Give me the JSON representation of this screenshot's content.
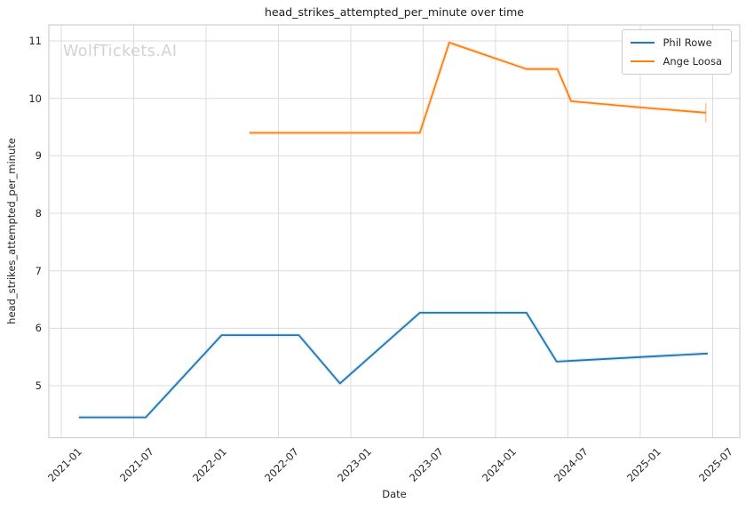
{
  "page": {
    "watermark": "WolfTickets.AI"
  },
  "colors": {
    "background": "#ffffff",
    "grid": "#dcdcdc",
    "spine": "#cfcfcf",
    "text": "#262626",
    "title_text": "#1a1a1a",
    "watermark": "#d2d2d2",
    "legend_border": "#cccccc",
    "series_blue": "#1f77b4",
    "series_orange": "#ff7f0e"
  },
  "chart_data": {
    "type": "line",
    "title": "head_strikes_attempted_per_minute over time",
    "xlabel": "Date",
    "ylabel": "head_strikes_attempted_per_minute",
    "x_tick_labels": [
      "2021-01",
      "2021-07",
      "2022-01",
      "2022-07",
      "2023-01",
      "2023-07",
      "2024-01",
      "2024-07",
      "2025-01",
      "2025-07"
    ],
    "y_ticks": [
      5,
      6,
      7,
      8,
      9,
      10,
      11
    ],
    "ylim": [
      4.1,
      11.28
    ],
    "xlim": [
      "2020-12",
      "2025-09"
    ],
    "grid": true,
    "legend": {
      "position": "upper right",
      "entries": [
        "Phil Rowe",
        "Ange Loosa"
      ]
    },
    "series": [
      {
        "name": "Phil Rowe",
        "color": "#1f77b4",
        "points": [
          {
            "date": "2021-02-15",
            "value": 4.45
          },
          {
            "date": "2021-08-01",
            "value": 4.45
          },
          {
            "date": "2022-02-10",
            "value": 5.88
          },
          {
            "date": "2022-08-22",
            "value": 5.88
          },
          {
            "date": "2022-12-04",
            "value": 5.04
          },
          {
            "date": "2023-06-23",
            "value": 6.27
          },
          {
            "date": "2024-03-18",
            "value": 6.27
          },
          {
            "date": "2024-06-03",
            "value": 5.42
          },
          {
            "date": "2025-01-05",
            "value": 5.5
          },
          {
            "date": "2025-06-19",
            "value": 5.56
          }
        ]
      },
      {
        "name": "Ange Loosa",
        "color": "#ff7f0e",
        "points": [
          {
            "date": "2022-04-19",
            "value": 9.4
          },
          {
            "date": "2023-06-23",
            "value": 9.4
          },
          {
            "date": "2023-09-06",
            "value": 10.97
          },
          {
            "date": "2024-03-18",
            "value": 10.51
          },
          {
            "date": "2024-06-05",
            "value": 10.51
          },
          {
            "date": "2024-07-09",
            "value": 9.95
          },
          {
            "date": "2025-01-05",
            "value": 9.84
          },
          {
            "date": "2025-06-14",
            "value": 9.75
          }
        ],
        "error_bar_last": {
          "low": 9.58,
          "high": 9.92
        }
      }
    ]
  }
}
